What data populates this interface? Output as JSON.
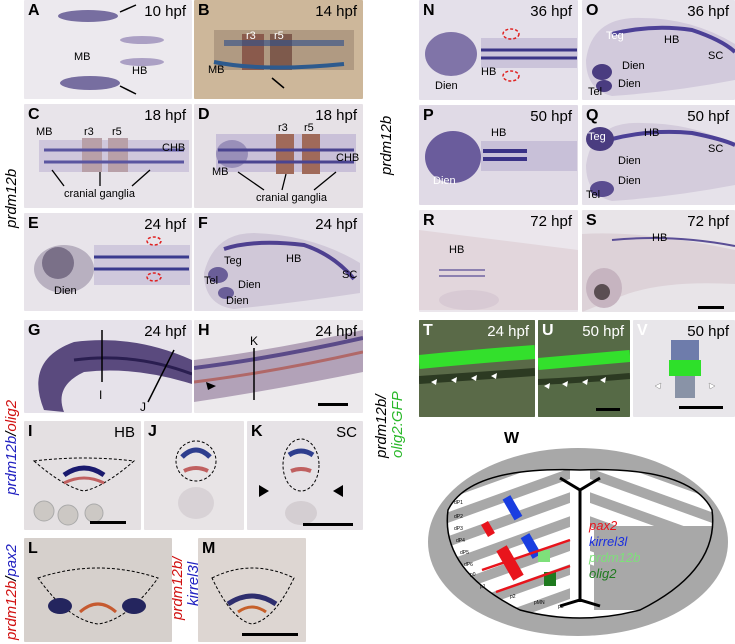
{
  "side_labels": {
    "left_gene": "prdm12b",
    "right_gene": "prdm12b",
    "gh_part1": "prdm12b",
    "gh_part2": "olig2",
    "tuv_part1": "prdm12b/",
    "tuv_part2": "olig2:GFP",
    "l_part1": "prdm12b",
    "l_part2": "pax2",
    "m_part1": "prdm12b/",
    "m_part2": "kirrel3l"
  },
  "panels": {
    "A": {
      "label": "A",
      "stage": "10 hpf",
      "mb": "MB",
      "hb": "HB"
    },
    "B": {
      "label": "B",
      "stage": "14 hpf",
      "mb": "MB",
      "r3": "r3",
      "r5": "r5"
    },
    "C": {
      "label": "C",
      "stage": "18 hpf",
      "mb": "MB",
      "r3": "r3",
      "r5": "r5",
      "chb": "CHB",
      "ganglia": "cranial ganglia"
    },
    "D": {
      "label": "D",
      "stage": "18 hpf",
      "mb": "MB",
      "r3": "r3",
      "r5": "r5",
      "chb": "CHB",
      "ganglia": "cranial ganglia"
    },
    "E": {
      "label": "E",
      "stage": "24 hpf",
      "dien": "Dien"
    },
    "F": {
      "label": "F",
      "stage": "24 hpf",
      "teg": "Teg",
      "hb": "HB",
      "sc": "SC",
      "tel": "Tel",
      "dien1": "Dien",
      "dien2": "Dien"
    },
    "G": {
      "label": "G",
      "stage": "24 hpf",
      "i": "I",
      "j": "J"
    },
    "H": {
      "label": "H",
      "stage": "24 hpf",
      "k": "K"
    },
    "I": {
      "label": "I",
      "region": "HB"
    },
    "J": {
      "label": "J"
    },
    "K": {
      "label": "K",
      "region": "SC"
    },
    "L": {
      "label": "L"
    },
    "M": {
      "label": "M"
    },
    "N": {
      "label": "N",
      "stage": "36 hpf",
      "dien": "Dien",
      "hb": "HB"
    },
    "O": {
      "label": "O",
      "stage": "36 hpf",
      "teg": "Teg",
      "hb": "HB",
      "sc": "SC",
      "tel": "Tel",
      "dien1": "Dien",
      "dien2": "Dien"
    },
    "P": {
      "label": "P",
      "stage": "50 hpf",
      "dien": "Dien",
      "hb": "HB"
    },
    "Q": {
      "label": "Q",
      "stage": "50 hpf",
      "teg": "Teg",
      "hb": "HB",
      "sc": "SC",
      "tel": "Tel",
      "dien1": "Dien",
      "dien2": "Dien"
    },
    "R": {
      "label": "R",
      "stage": "72 hpf",
      "hb": "HB"
    },
    "S": {
      "label": "S",
      "stage": "72 hpf",
      "hb": "HB"
    },
    "T": {
      "label": "T",
      "stage": "24 hpf"
    },
    "U": {
      "label": "U",
      "stage": "50 hpf"
    },
    "V": {
      "label": "V",
      "stage": "50 hpf"
    },
    "W": {
      "label": "W"
    }
  },
  "diagram": {
    "domains": [
      "dP1",
      "dP2",
      "dP3",
      "dP4",
      "dP5",
      "dP6",
      "p0",
      "p1",
      "p2",
      "pMN",
      "p3"
    ],
    "legend": [
      {
        "name": "pax2",
        "color": "#e8141c"
      },
      {
        "name": "kirrel3l",
        "color": "#1a2ee0"
      },
      {
        "name": "prdm12b",
        "color": "#7ee07a"
      },
      {
        "name": "olig2",
        "color": "#1f7a1f"
      }
    ]
  }
}
